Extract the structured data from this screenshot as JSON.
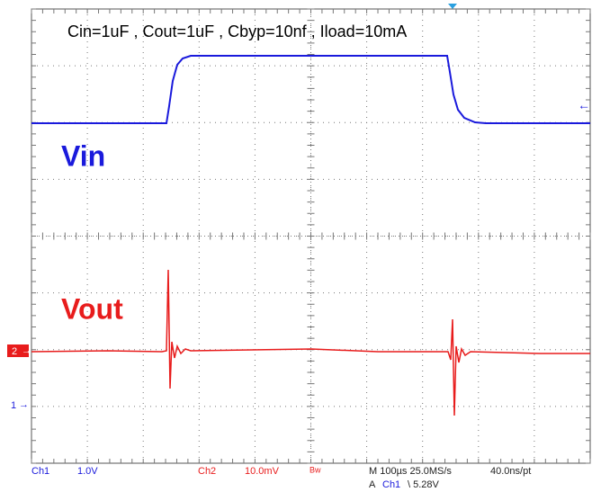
{
  "header": {
    "title": "Cin=1uF , Cout=1uF , Cbyp=10nf , Iload=10mA"
  },
  "traces": [
    {
      "label": "Vin",
      "color": "#1a1adc"
    },
    {
      "label": "Vout",
      "color": "#e81c1c"
    }
  ],
  "markers": {
    "ch2": "2",
    "ch1": "1"
  },
  "status": {
    "ch1": "Ch1",
    "ch1_scale": "1.0V",
    "ch2": "Ch2",
    "ch2_scale": "10.0mV",
    "bw": "Bw",
    "timebase": "M 100µs 25.0MS/s",
    "resolution": "40.0ns/pt",
    "trigger_prefix": "A",
    "trigger_source": "Ch1",
    "trigger_level": "\\ 5.28V"
  }
}
